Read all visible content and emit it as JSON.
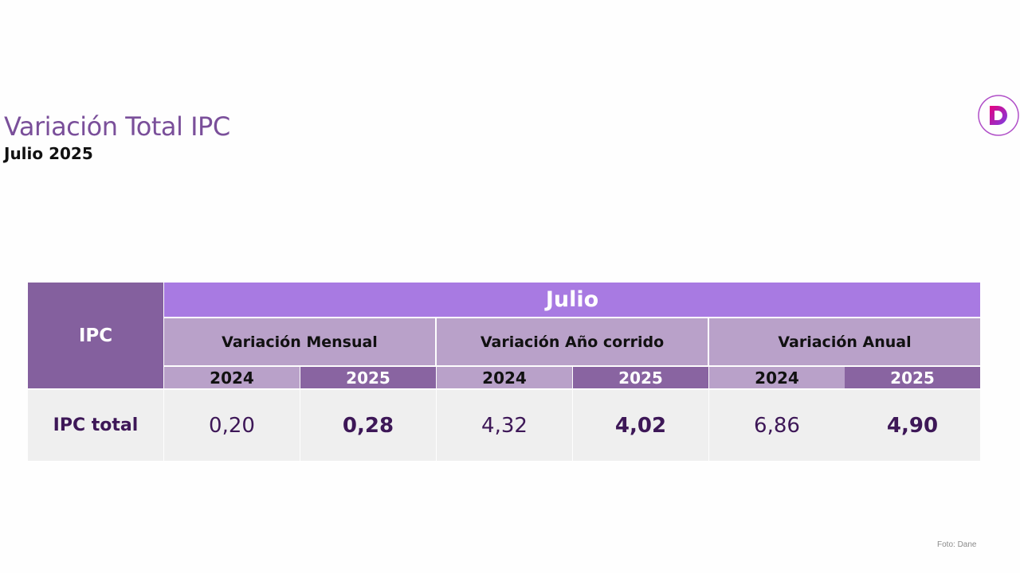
{
  "header": {
    "title": "Variación Total IPC",
    "subtitle": "Julio 2025"
  },
  "logo": {
    "icon": "d-logo-icon",
    "colors": [
      "#e6007e",
      "#7b3fe4"
    ]
  },
  "table": {
    "corner_label": "IPC",
    "period_label": "Julio",
    "groups": [
      {
        "label": "Variación Mensual",
        "years": [
          "2024",
          "2025"
        ]
      },
      {
        "label": "Variación Año corrido",
        "years": [
          "2024",
          "2025"
        ]
      },
      {
        "label": "Variación Anual",
        "years": [
          "2024",
          "2025"
        ]
      }
    ],
    "rows": [
      {
        "label": "IPC total",
        "values": [
          "0,20",
          "0,28",
          "4,32",
          "4,02",
          "6,86",
          "4,90"
        ]
      }
    ]
  },
  "footer": {
    "credit": "Foto: Dane"
  }
}
